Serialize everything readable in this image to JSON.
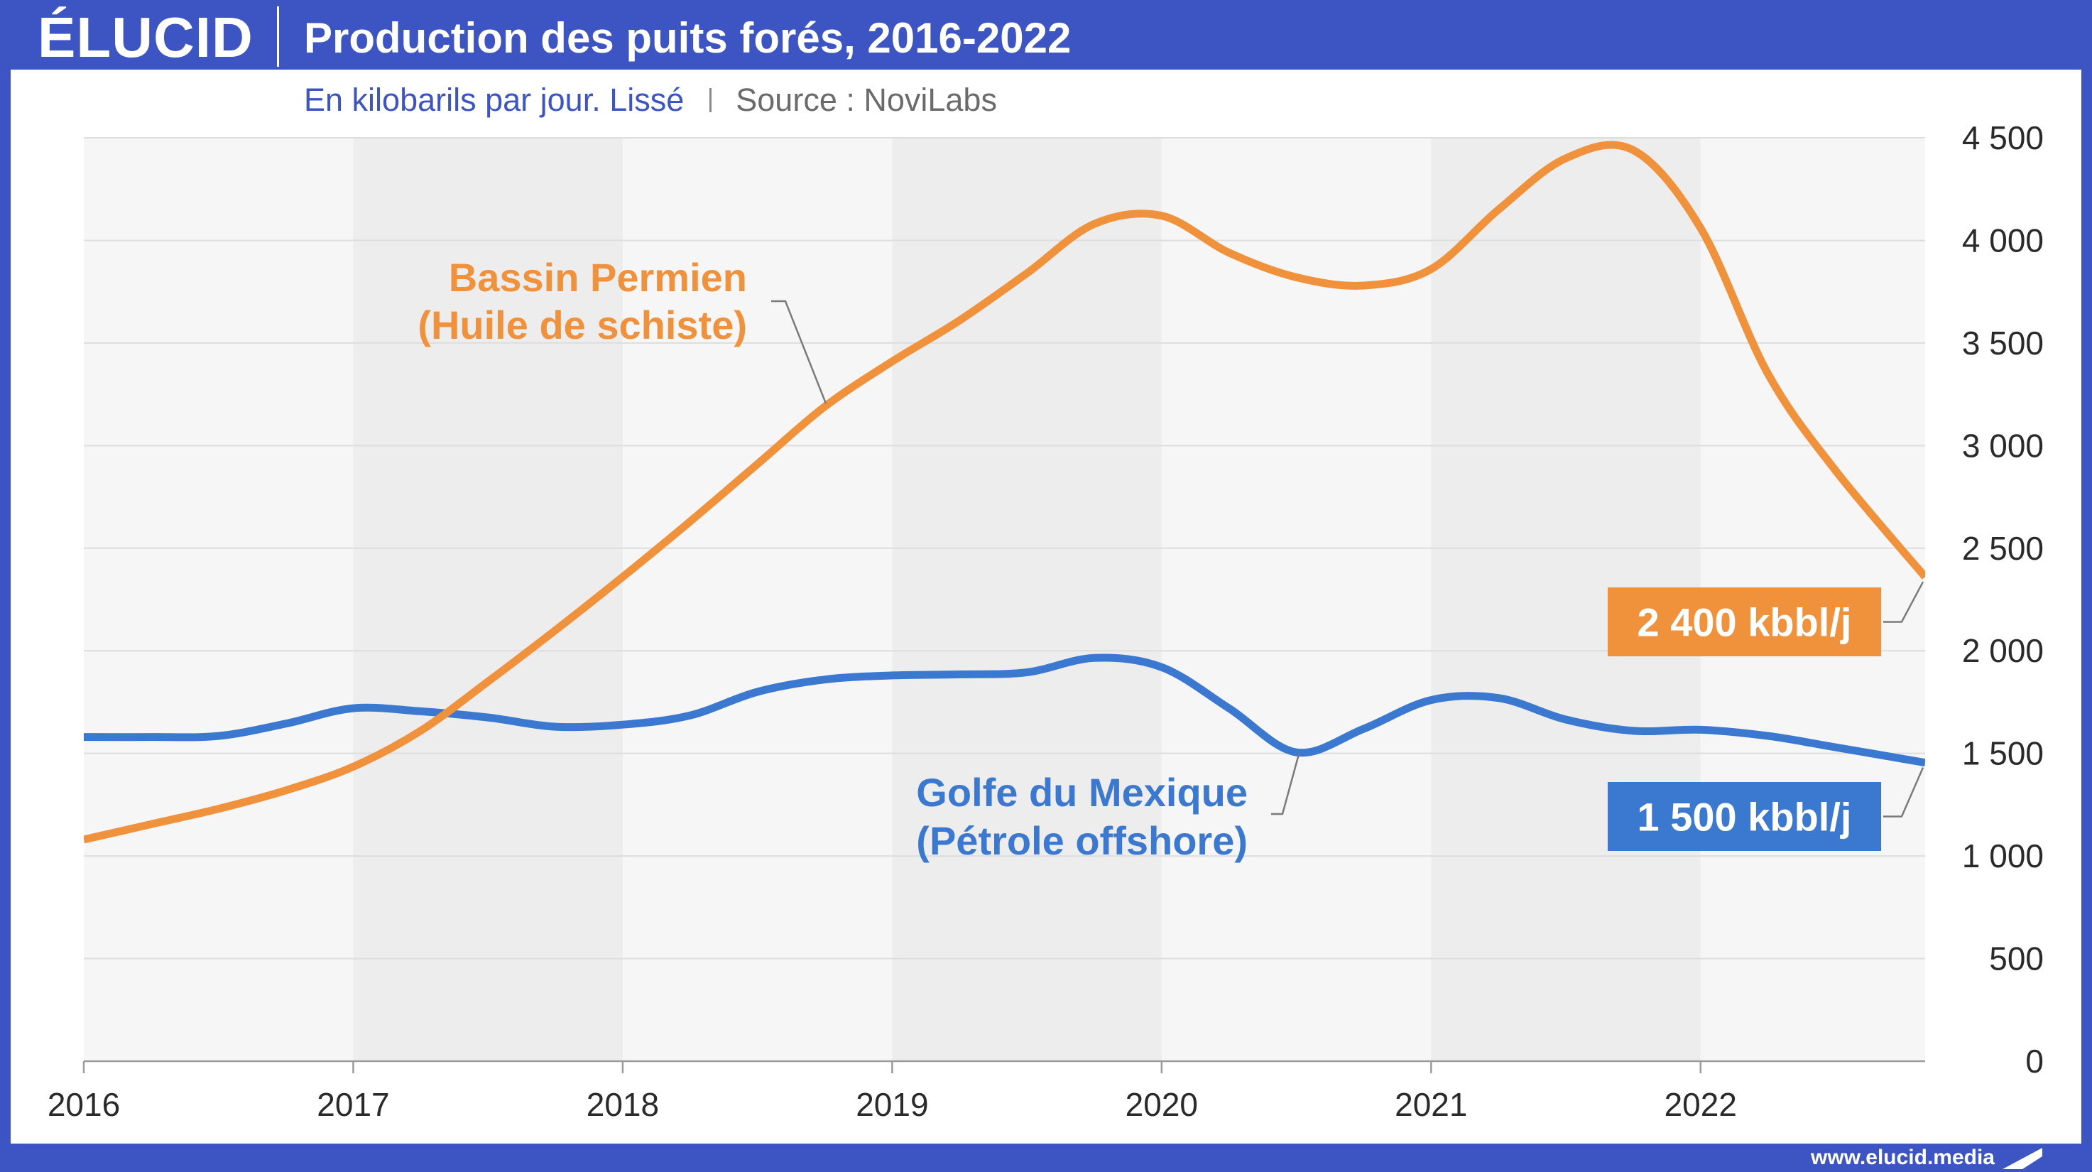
{
  "brand": {
    "logo_text": "ÉLUCID",
    "website": "www.elucid.media",
    "footer_icon": "elucid-flag-icon"
  },
  "colors": {
    "frame": "#3D55C2",
    "subtitle": "#3D55C2",
    "source": "#6B6B6B",
    "band_light": "#F6F6F6",
    "band_dark": "#EDEDED"
  },
  "chart_data": {
    "type": "line",
    "title": "Production des puits forés, 2016-2022",
    "subtitle": "En kilobarils par jour. Lissé",
    "source": "Source : NoviLabs",
    "xlim": [
      "2016-01",
      "2022-11"
    ],
    "ylim": [
      0,
      4500
    ],
    "y_axis_side": "right",
    "grid": true,
    "xtick_labels": [
      "2016",
      "2017",
      "2018",
      "2019",
      "2020",
      "2021",
      "2022"
    ],
    "yticks": [
      0,
      500,
      1000,
      1500,
      2000,
      2500,
      3000,
      3500,
      4000,
      4500
    ],
    "ytick_labels": [
      "0",
      "500",
      "1 000",
      "1 500",
      "2 000",
      "2 500",
      "3 000",
      "3 500",
      "4 000",
      "4 500"
    ],
    "x": [
      "2016-01",
      "2016-04",
      "2016-07",
      "2016-10",
      "2017-01",
      "2017-04",
      "2017-07",
      "2017-10",
      "2018-01",
      "2018-04",
      "2018-07",
      "2018-10",
      "2019-01",
      "2019-04",
      "2019-07",
      "2019-10",
      "2020-01",
      "2020-04",
      "2020-07",
      "2020-10",
      "2021-01",
      "2021-04",
      "2021-07",
      "2021-10",
      "2022-01",
      "2022-04",
      "2022-07",
      "2022-11"
    ],
    "series": [
      {
        "name": "Bassin Permien",
        "name_sub": "(Huile de schiste)",
        "end_label": "2 400 kbbl/j",
        "color": "#F0923C",
        "values": [
          1080,
          1155,
          1230,
          1320,
          1435,
          1610,
          1850,
          2100,
          2360,
          2630,
          2910,
          3190,
          3410,
          3610,
          3840,
          4080,
          4120,
          3940,
          3820,
          3780,
          3860,
          4150,
          4400,
          4440,
          4060,
          3350,
          2880,
          2360
        ]
      },
      {
        "name": "Golfe du Mexique",
        "name_sub": "(Pétrole offshore)",
        "end_label": "1 500 kbbl/j",
        "color": "#3A79CF",
        "values": [
          1580,
          1580,
          1585,
          1645,
          1720,
          1705,
          1675,
          1630,
          1640,
          1685,
          1800,
          1860,
          1880,
          1885,
          1895,
          1965,
          1920,
          1720,
          1505,
          1620,
          1760,
          1770,
          1665,
          1610,
          1615,
          1585,
          1530,
          1455
        ]
      }
    ]
  }
}
